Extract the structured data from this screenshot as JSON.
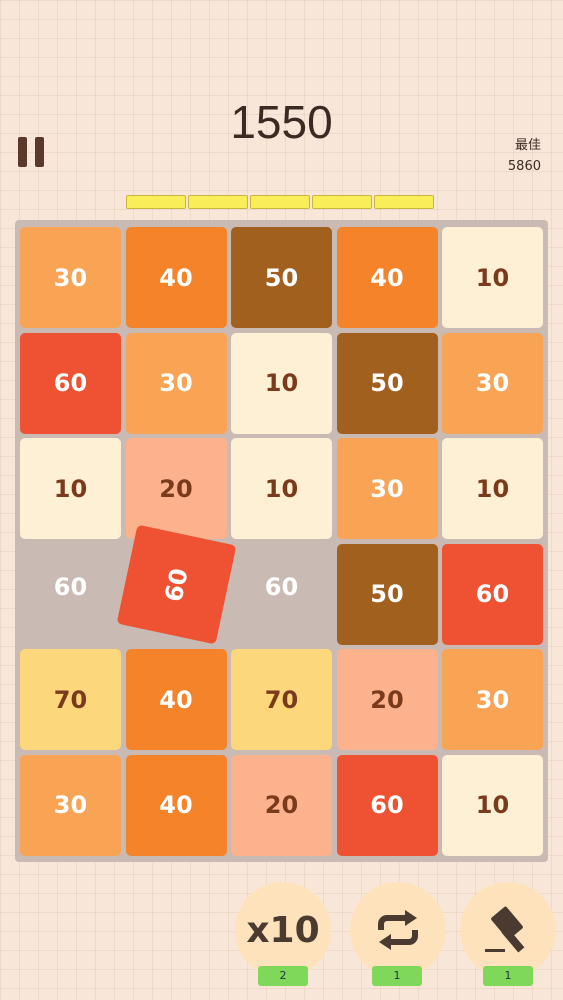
{
  "header": {
    "score": "1550",
    "best_label": "最佳",
    "best": "5860"
  },
  "board": {
    "rows": [
      [
        30,
        40,
        50,
        40,
        10
      ],
      [
        60,
        30,
        10,
        50,
        30
      ],
      [
        10,
        20,
        10,
        30,
        10
      ],
      [
        60,
        60,
        60,
        50,
        60
      ],
      [
        70,
        40,
        70,
        20,
        30
      ],
      [
        30,
        40,
        20,
        60,
        10
      ]
    ]
  },
  "tools": {
    "multiplier": {
      "label": "x10",
      "count": "2"
    },
    "swap": {
      "count": "1"
    },
    "hammer": {
      "count": "1"
    }
  }
}
